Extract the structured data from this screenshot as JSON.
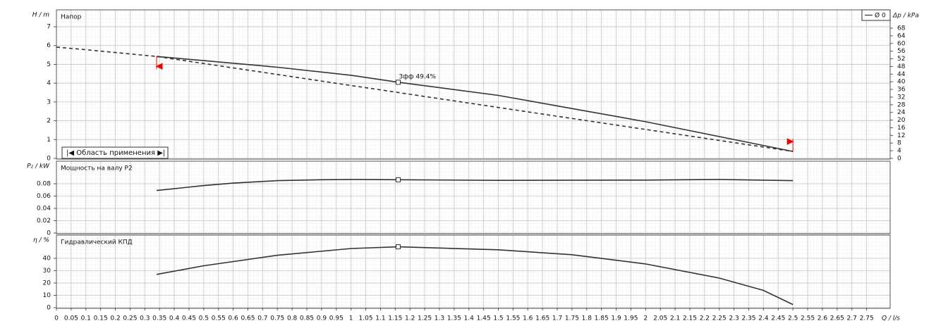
{
  "chart_data": [
    {
      "type": "line",
      "title": "Напор",
      "ylabel": "H / m",
      "y2label": "Δp / kPa",
      "xlim": [
        0,
        2.83
      ],
      "ylim": [
        0,
        7.9
      ],
      "yticks": [
        0,
        1,
        2,
        3,
        4,
        5,
        6,
        7
      ],
      "y2lim": [
        0,
        77.56
      ],
      "y2ticks": [
        0,
        4,
        8,
        12,
        16,
        20,
        24,
        28,
        32,
        36,
        40,
        44,
        48,
        52,
        56,
        60,
        64,
        68
      ],
      "grid": true,
      "legend": "top-right",
      "x": [
        0,
        0.1,
        0.2,
        0.34,
        0.5,
        0.75,
        1.0,
        1.16,
        1.5,
        1.75,
        2.0,
        2.25,
        2.5
      ],
      "series": [
        {
          "name": "Ø 0",
          "color": "#333333",
          "values": [
            5.92,
            5.78,
            5.63,
            5.42,
            5.2,
            4.85,
            4.42,
            4.05,
            3.35,
            2.65,
            1.95,
            1.16,
            0.37
          ]
        }
      ],
      "range": [
        0.34,
        2.5
      ],
      "range_label": "|◀ Область применения ▶|",
      "bep": {
        "q": 1.16,
        "label": "3фф  49.4%"
      }
    },
    {
      "type": "line",
      "title": "Мощность на валу P2",
      "ylabel": "P₂ / kW",
      "xlim": [
        0,
        2.83
      ],
      "ylim": [
        0,
        0.1166
      ],
      "yticks": [
        0,
        0.02,
        0.04,
        0.06,
        0.08
      ],
      "grid": true,
      "x": [
        0.34,
        0.5,
        0.6,
        0.75,
        0.9,
        1.0,
        1.16,
        1.5,
        2.0,
        2.25,
        2.5
      ],
      "series": [
        {
          "color": "#333333",
          "values": [
            0.069,
            0.077,
            0.081,
            0.085,
            0.0865,
            0.087,
            0.0865,
            0.0855,
            0.086,
            0.087,
            0.085
          ]
        }
      ],
      "bep": {
        "q": 1.16
      }
    },
    {
      "type": "line",
      "title": "Гидравлический КПД",
      "ylabel": "η / %",
      "xlabel": "Q / l/s",
      "xlim": [
        0,
        2.83
      ],
      "ylim": [
        0,
        58.86
      ],
      "yticks": [
        0,
        10,
        20,
        30,
        40
      ],
      "grid": true,
      "xticks": [
        0,
        0.05,
        0.1,
        0.15,
        0.2,
        0.25,
        0.3,
        0.35,
        0.4,
        0.45,
        0.5,
        0.55,
        0.6,
        0.65,
        0.7,
        0.75,
        0.8,
        0.85,
        0.9,
        0.95,
        1,
        1.05,
        1.1,
        1.15,
        1.2,
        1.25,
        1.3,
        1.35,
        1.4,
        1.45,
        1.5,
        1.55,
        1.6,
        1.65,
        1.7,
        1.75,
        1.8,
        1.85,
        1.9,
        1.95,
        2,
        2.05,
        2.1,
        2.15,
        2.2,
        2.25,
        2.3,
        2.35,
        2.4,
        2.45,
        2.5,
        2.55,
        2.6,
        2.65,
        2.7,
        2.75
      ],
      "x": [
        0.34,
        0.5,
        0.75,
        1.0,
        1.16,
        1.5,
        1.75,
        2.0,
        2.25,
        2.4,
        2.5
      ],
      "series": [
        {
          "color": "#333333",
          "values": [
            27,
            34,
            42.5,
            48,
            49.4,
            47,
            43,
            35.5,
            24,
            14,
            2.5
          ]
        }
      ],
      "bep": {
        "q": 1.16
      }
    }
  ]
}
